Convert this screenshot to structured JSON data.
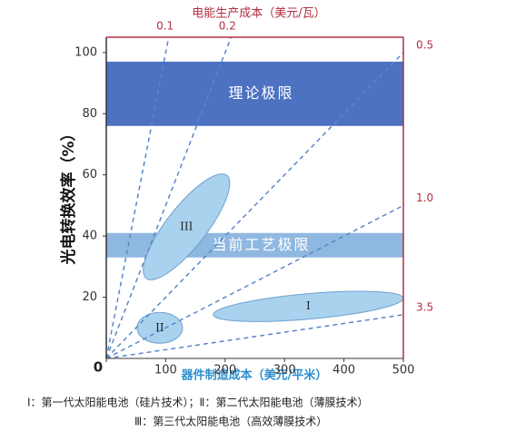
{
  "chart_data": {
    "type": "efficiency-cost",
    "title": "电能生产成本（美元/瓦）",
    "x_label": "器件制造成本（美元/平米）",
    "y_label": "光电转换效率（%）",
    "xlim": [
      0,
      500
    ],
    "xticks": [
      0,
      100,
      200,
      300,
      400,
      500
    ],
    "ylim": [
      0,
      105
    ],
    "yticks": [
      20,
      40,
      60,
      80,
      100
    ],
    "bands": [
      {
        "label": "理论极限",
        "range": [
          76,
          97
        ],
        "color": "#4d72c2"
      },
      {
        "label": "当前工艺极限",
        "range": [
          33,
          41
        ],
        "color": "#8fb8e0"
      }
    ],
    "per_watt_lines": [
      0.1,
      0.2,
      0.5,
      {
        "value": 1,
        "label": "1.0"
      },
      3.5
    ],
    "line_color": "#5b86c8",
    "regions": [
      {
        "label": "I",
        "x": 340,
        "y": 17
      },
      {
        "label": "II",
        "x": 90,
        "y": 10
      },
      {
        "label": "III",
        "x": 135,
        "y": 43
      }
    ],
    "region_color": "#a9d2ef",
    "notes": [
      "Ⅰ：第一代太阳能电池（硅片技术）；Ⅱ：第二代太阳能电池（薄膜技术）",
      "Ⅲ：第三代太阳能电池（高效薄膜技术）"
    ]
  }
}
